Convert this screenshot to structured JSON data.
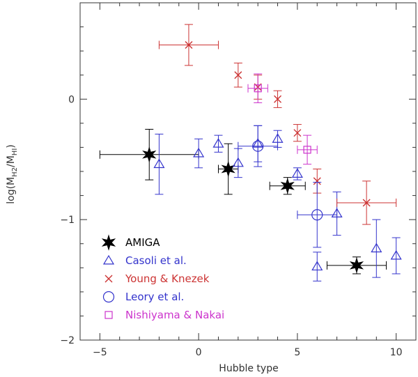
{
  "chart_data": {
    "type": "scatter",
    "xlabel": "Hubble type",
    "ylabel": "log(M_H2/M_HI)",
    "ylabel_parts": {
      "base": "log(M",
      "sub1": "H2",
      "mid": "/M",
      "sub2": "HI",
      "end": ")"
    },
    "xlim": [
      -6,
      11
    ],
    "ylim": [
      -2,
      0.8
    ],
    "x_ticks": [
      -5,
      0,
      5,
      10
    ],
    "y_ticks": [
      -2,
      -1,
      0
    ],
    "x_tick_labels": [
      "−5",
      "0",
      "5",
      "10"
    ],
    "y_tick_labels": [
      "−2",
      "−1",
      "0"
    ],
    "grid": false,
    "legend_position": "bottom-left",
    "series": [
      {
        "name": "AMIGA",
        "marker": "star",
        "color": "#000000",
        "points": [
          {
            "x": -2.5,
            "y": -0.46,
            "xerr": [
              2.5,
              2.5
            ],
            "yerr": [
              0.21,
              0.21
            ]
          },
          {
            "x": 1.5,
            "y": -0.58,
            "xerr": [
              0.5,
              0.5
            ],
            "yerr": [
              0.21,
              0.21
            ]
          },
          {
            "x": 4.5,
            "y": -0.72,
            "xerr": [
              0.9,
              0.9
            ],
            "yerr": [
              0.07,
              0.07
            ]
          },
          {
            "x": 8.0,
            "y": -1.38,
            "xerr": [
              1.5,
              1.5
            ],
            "yerr": [
              0.07,
              0.07
            ]
          }
        ]
      },
      {
        "name": "Casoli et al.",
        "marker": "triangle",
        "color": "#3333cc",
        "points": [
          {
            "x": -2.0,
            "y": -0.54,
            "xerr": [
              0,
              0
            ],
            "yerr": [
              0.25,
              0.25
            ]
          },
          {
            "x": 0.0,
            "y": -0.45,
            "xerr": [
              0,
              0
            ],
            "yerr": [
              0.12,
              0.12
            ]
          },
          {
            "x": 1.0,
            "y": -0.37,
            "xerr": [
              0,
              0
            ],
            "yerr": [
              0.07,
              0.07
            ]
          },
          {
            "x": 2.0,
            "y": -0.53,
            "xerr": [
              0,
              0
            ],
            "yerr": [
              0.12,
              0.12
            ]
          },
          {
            "x": 3.0,
            "y": -0.37,
            "xerr": [
              0,
              0
            ],
            "yerr": [
              0.15,
              0.15
            ]
          },
          {
            "x": 4.0,
            "y": -0.33,
            "xerr": [
              0,
              0
            ],
            "yerr": [
              0.07,
              0.07
            ]
          },
          {
            "x": 5.0,
            "y": -0.62,
            "xerr": [
              0,
              0
            ],
            "yerr": [
              0.05,
              0.05
            ]
          },
          {
            "x": 6.0,
            "y": -1.39,
            "xerr": [
              0,
              0
            ],
            "yerr": [
              0.12,
              0.12
            ]
          },
          {
            "x": 7.0,
            "y": -0.95,
            "xerr": [
              0,
              0
            ],
            "yerr": [
              0.18,
              0.18
            ]
          },
          {
            "x": 9.0,
            "y": -1.24,
            "xerr": [
              0,
              0
            ],
            "yerr": [
              0.24,
              0.24
            ]
          },
          {
            "x": 10.0,
            "y": -1.3,
            "xerr": [
              0,
              0
            ],
            "yerr": [
              0.15,
              0.15
            ]
          }
        ]
      },
      {
        "name": "Young & Knezek",
        "marker": "cross",
        "color": "#cc3333",
        "points": [
          {
            "x": -0.5,
            "y": 0.45,
            "xerr": [
              1.5,
              1.5
            ],
            "yerr": [
              0.17,
              0.17
            ]
          },
          {
            "x": 2.0,
            "y": 0.2,
            "xerr": [
              0,
              0
            ],
            "yerr": [
              0.1,
              0.1
            ]
          },
          {
            "x": 3.0,
            "y": 0.1,
            "xerr": [
              0,
              0
            ],
            "yerr": [
              0.1,
              0.1
            ]
          },
          {
            "x": 4.0,
            "y": 0.0,
            "xerr": [
              0,
              0
            ],
            "yerr": [
              0.07,
              0.07
            ]
          },
          {
            "x": 5.0,
            "y": -0.28,
            "xerr": [
              0,
              0
            ],
            "yerr": [
              0.07,
              0.07
            ]
          },
          {
            "x": 6.0,
            "y": -0.68,
            "xerr": [
              0,
              0
            ],
            "yerr": [
              0.1,
              0.1
            ]
          },
          {
            "x": 8.5,
            "y": -0.86,
            "xerr": [
              1.5,
              1.5
            ],
            "yerr": [
              0.18,
              0.18
            ]
          }
        ]
      },
      {
        "name": "Leory et al.",
        "marker": "circle",
        "color": "#3333cc",
        "points": [
          {
            "x": 3.0,
            "y": -0.39,
            "xerr": [
              1.0,
              1.0
            ],
            "yerr": [
              0.17,
              0.17
            ]
          },
          {
            "x": 6.0,
            "y": -0.96,
            "xerr": [
              1.0,
              1.0
            ],
            "yerr": [
              0.27,
              0.27
            ]
          }
        ]
      },
      {
        "name": "Nishiyama & Nakai",
        "marker": "square",
        "color": "#cc33cc",
        "points": [
          {
            "x": 3.0,
            "y": 0.09,
            "xerr": [
              0.5,
              0.5
            ],
            "yerr": [
              0.12,
              0.12
            ]
          },
          {
            "x": 5.5,
            "y": -0.42,
            "xerr": [
              0.5,
              0.5
            ],
            "yerr": [
              0.12,
              0.12
            ]
          }
        ]
      }
    ]
  }
}
